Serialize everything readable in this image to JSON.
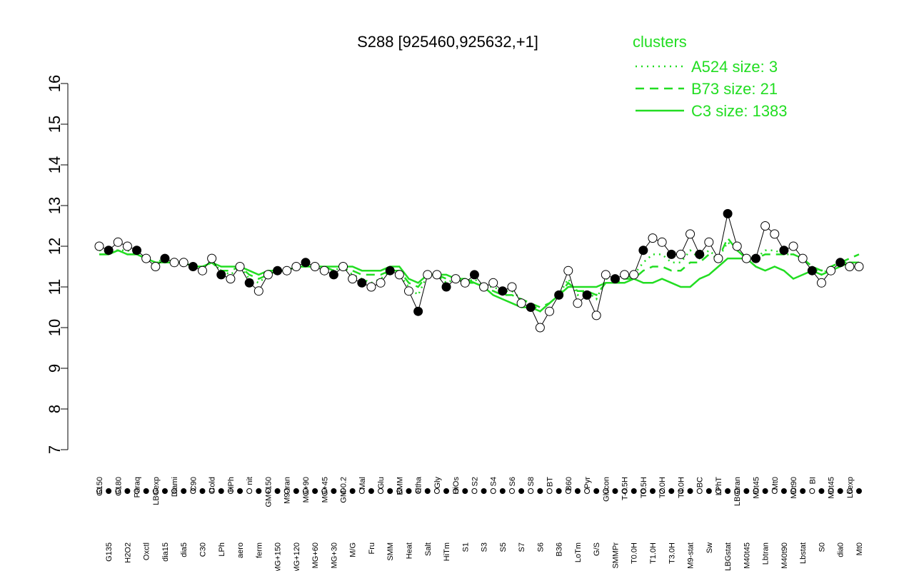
{
  "chart_data": {
    "type": "line",
    "title": "S288 [925460,925632,+1]",
    "legend_title": "clusters",
    "ylim": [
      7,
      16
    ],
    "yticks": [
      7,
      8,
      9,
      10,
      11,
      12,
      13,
      14,
      15,
      16
    ],
    "categories": [
      "G150",
      "G135",
      "G180",
      "H2O2",
      "Paraq",
      "Oxctl",
      "LBGexp",
      "dia15",
      "Diami",
      "dia5",
      "C90",
      "C30",
      "Cold",
      "LPh",
      "HPh",
      "aero",
      "nit",
      "ferm",
      "GM+150",
      "MG+150",
      "M9-tran",
      "MG+120",
      "MG+90",
      "MG+60",
      "MG+45",
      "MG+30",
      "GM-0.2",
      "M/G",
      "Mal",
      "Fru",
      "Glu",
      "SMM",
      "BMM",
      "Heat",
      "Etha",
      "Salt",
      "Gly",
      "HiTm",
      "HiOs",
      "S1",
      "S2",
      "S3",
      "S4",
      "S5",
      "S6",
      "S7",
      "S8",
      "S6",
      "BT",
      "B36",
      "B60",
      "LoTm",
      "Pyr",
      "G/S",
      "Glucon",
      "SMMPr",
      "T-0.5H",
      "T0.0H",
      "T0.5H",
      "T1.0H",
      "T2.0H",
      "T3.0H",
      "T4.0H",
      "M9-stat",
      "BC",
      "Sw",
      "LPhT",
      "LBGstat",
      "LBGtran",
      "M40t45",
      "M0t45",
      "Lbtran",
      "Mt0",
      "M40t90",
      "M0t90",
      "Lbstat",
      "BI",
      "S0",
      "M0t45",
      "dia0",
      "Lbexp",
      "Mt0"
    ],
    "values": [
      12.0,
      11.9,
      12.1,
      12.0,
      11.9,
      11.7,
      11.5,
      11.7,
      11.6,
      11.6,
      11.5,
      11.4,
      11.7,
      11.3,
      11.2,
      11.5,
      11.1,
      10.9,
      11.3,
      11.4,
      11.4,
      11.5,
      11.6,
      11.5,
      11.4,
      11.3,
      11.5,
      11.2,
      11.1,
      11.0,
      11.1,
      11.4,
      11.3,
      10.9,
      10.4,
      11.3,
      11.3,
      11.0,
      11.2,
      11.1,
      11.3,
      11.0,
      11.1,
      10.9,
      11.0,
      10.6,
      10.5,
      10.0,
      10.4,
      10.8,
      11.4,
      10.6,
      10.8,
      10.3,
      11.3,
      11.2,
      11.3,
      11.3,
      11.9,
      12.2,
      12.1,
      11.8,
      11.8,
      12.3,
      11.8,
      12.1,
      11.7,
      12.8,
      12.0,
      11.7,
      11.7,
      12.5,
      12.3,
      11.9,
      12.0,
      11.7,
      11.4,
      11.1,
      11.4,
      11.6,
      11.5,
      11.5
    ],
    "series": [
      {
        "name": "A524 size: 3",
        "color": "#22dd22",
        "dash": "2,6",
        "values": [
          11.9,
          11.9,
          11.9,
          11.9,
          11.8,
          11.7,
          11.6,
          11.7,
          11.6,
          11.6,
          11.5,
          11.5,
          11.6,
          11.4,
          11.3,
          11.5,
          11.2,
          11.1,
          11.3,
          11.4,
          11.4,
          11.5,
          11.5,
          11.5,
          11.4,
          11.4,
          11.5,
          11.3,
          11.2,
          11.1,
          11.2,
          11.4,
          11.3,
          11.0,
          10.8,
          11.3,
          11.3,
          11.1,
          11.2,
          11.1,
          11.2,
          11.0,
          11.0,
          10.9,
          10.9,
          10.7,
          10.6,
          10.4,
          10.6,
          10.8,
          11.2,
          10.8,
          10.9,
          10.7,
          11.2,
          11.2,
          11.2,
          11.3,
          11.6,
          11.8,
          11.8,
          11.6,
          11.6,
          11.9,
          11.7,
          11.9,
          11.7,
          12.1,
          11.9,
          11.7,
          11.7,
          11.9,
          11.9,
          11.8,
          11.8,
          11.7,
          11.5,
          11.3,
          11.5,
          11.6,
          11.6,
          11.6
        ]
      },
      {
        "name": "B73 size: 21",
        "color": "#22dd22",
        "dash": "12,8",
        "values": [
          11.8,
          11.8,
          11.9,
          11.8,
          11.8,
          11.7,
          11.6,
          11.6,
          11.6,
          11.6,
          11.5,
          11.5,
          11.6,
          11.4,
          11.4,
          11.5,
          11.3,
          11.2,
          11.3,
          11.4,
          11.4,
          11.5,
          11.5,
          11.5,
          11.5,
          11.4,
          11.5,
          11.4,
          11.3,
          11.3,
          11.3,
          11.4,
          11.4,
          11.1,
          11.0,
          11.3,
          11.3,
          11.2,
          11.2,
          11.1,
          11.1,
          11.0,
          10.9,
          10.8,
          10.8,
          10.7,
          10.6,
          10.5,
          10.6,
          10.8,
          11.1,
          10.9,
          10.9,
          10.8,
          11.1,
          11.1,
          11.2,
          11.2,
          11.4,
          11.5,
          11.5,
          11.4,
          11.4,
          11.6,
          11.6,
          11.8,
          11.7,
          12.2,
          11.9,
          11.7,
          11.7,
          11.8,
          11.8,
          11.8,
          11.8,
          11.7,
          11.5,
          11.4,
          11.5,
          11.6,
          11.7,
          11.8
        ]
      },
      {
        "name": "C3 size: 1383",
        "color": "#22dd22",
        "dash": "",
        "values": [
          11.8,
          11.8,
          11.9,
          11.8,
          11.8,
          11.7,
          11.6,
          11.6,
          11.6,
          11.6,
          11.5,
          11.5,
          11.6,
          11.5,
          11.5,
          11.5,
          11.4,
          11.3,
          11.4,
          11.4,
          11.4,
          11.5,
          11.5,
          11.5,
          11.5,
          11.5,
          11.5,
          11.5,
          11.4,
          11.4,
          11.4,
          11.5,
          11.5,
          11.2,
          11.1,
          11.3,
          11.3,
          11.3,
          11.2,
          11.2,
          11.1,
          11.0,
          10.8,
          10.7,
          10.6,
          10.5,
          10.5,
          10.4,
          10.6,
          10.8,
          11.0,
          11.0,
          11.0,
          11.0,
          11.1,
          11.1,
          11.1,
          11.2,
          11.1,
          11.1,
          11.2,
          11.1,
          11.0,
          11.0,
          11.2,
          11.3,
          11.5,
          11.7,
          11.7,
          11.7,
          11.5,
          11.4,
          11.5,
          11.4,
          11.2,
          11.3,
          11.4,
          11.3,
          11.4,
          11.5,
          11.6,
          11.6
        ]
      }
    ]
  }
}
